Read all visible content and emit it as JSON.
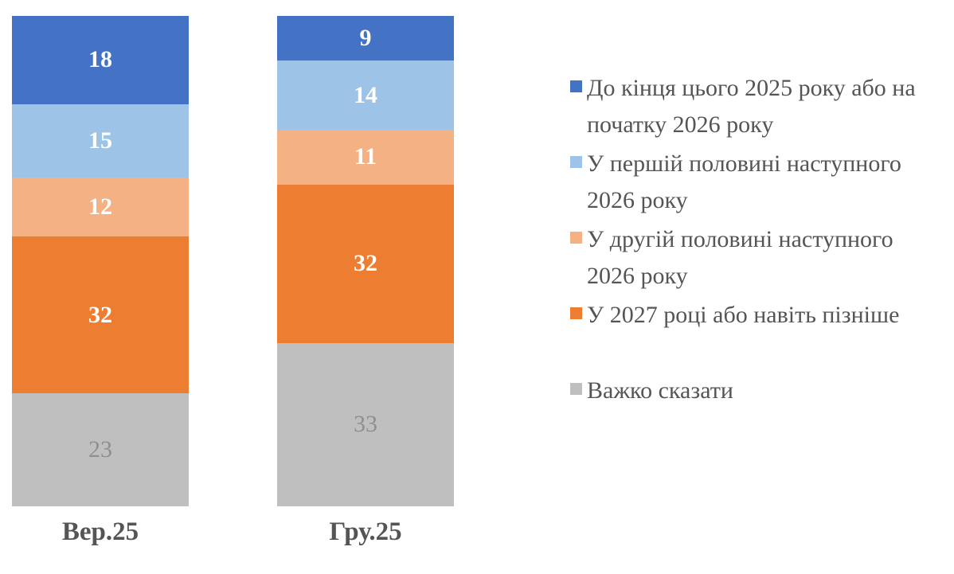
{
  "chart_data": {
    "type": "bar",
    "subtype": "stacked-column",
    "orientation": "vertical",
    "categories": [
      "Вер.25",
      "Гру.25"
    ],
    "series": [
      {
        "name": "До кінця цього 2025 року або на початку 2026 року",
        "color": "#4472C4",
        "values": [
          18,
          9
        ],
        "label_color": "#FFFFFF",
        "label_bold": true
      },
      {
        "name": "У першій половині наступного 2026 року",
        "color": "#9DC3E6",
        "values": [
          15,
          14
        ],
        "label_color": "#FFFFFF",
        "label_bold": true
      },
      {
        "name": "У другій половині наступного 2026 року",
        "color": "#F4B183",
        "values": [
          12,
          11
        ],
        "label_color": "#FFFFFF",
        "label_bold": true
      },
      {
        "name": "У 2027 році або навіть пізніше",
        "color": "#ED7D31",
        "values": [
          32,
          32
        ],
        "label_color": "#FFFFFF",
        "label_bold": true
      },
      {
        "name": "Важко сказати",
        "color": "#BFBFBF",
        "values": [
          23,
          33
        ],
        "label_color": "#8F8F8F",
        "label_bold": false
      }
    ],
    "legend": {
      "position": "right",
      "items": [
        {
          "color": "#4472C4",
          "lines": [
            "До кінця цього 2025 року або на",
            "початку 2026 року"
          ]
        },
        {
          "color": "#9DC3E6",
          "lines": [
            "У першій половині наступного",
            "2026 року"
          ]
        },
        {
          "color": "#F4B183",
          "lines": [
            "У другій половині наступного",
            "2026 року"
          ]
        },
        {
          "color": "#ED7D31",
          "lines": [
            "У 2027 році або навіть пізніше"
          ]
        },
        {
          "color": "#BFBFBF",
          "lines": [
            "Важко сказати"
          ]
        }
      ]
    },
    "value_axis": {
      "min": 0,
      "max": 100,
      "visible": false
    },
    "category_axis": {
      "visible": true
    },
    "gridlines": false,
    "data_labels": true
  },
  "styles": {
    "background": "#FFFFFF",
    "category_label_color": "#555555",
    "legend_text_color": "#555555"
  }
}
